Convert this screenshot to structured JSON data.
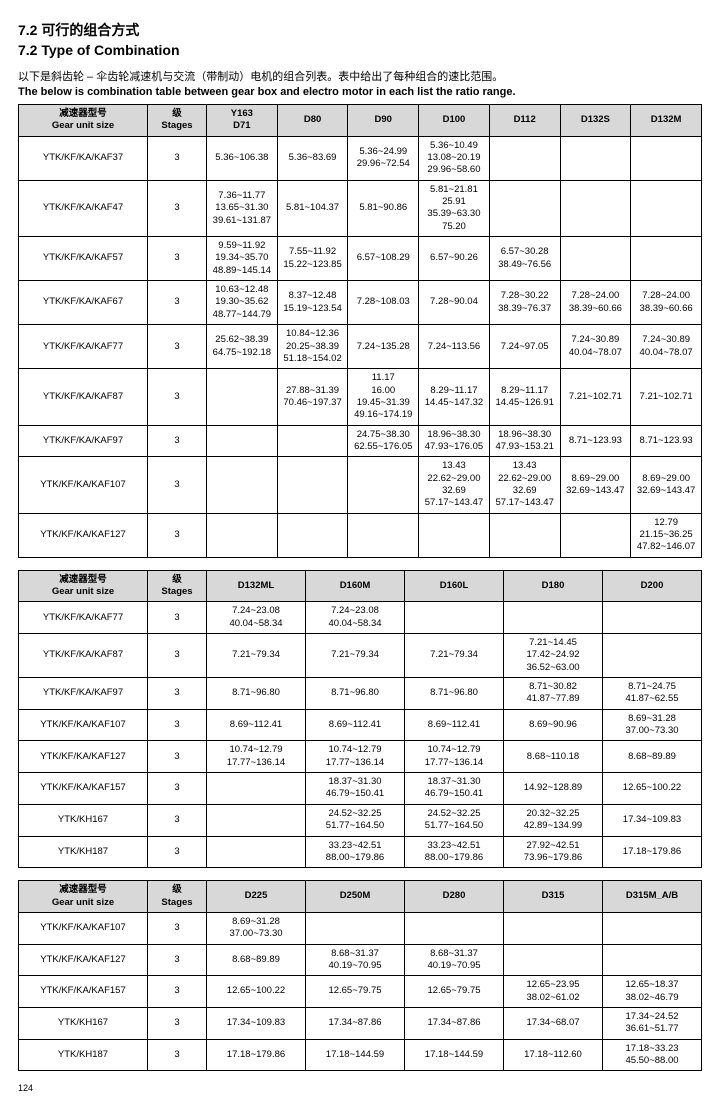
{
  "heading_cn": "7.2 可行的组合方式",
  "heading_en": "7.2 Type of Combination",
  "intro_cn": "以下是斜齿轮 – 伞齿轮减速机与交流（带制动）电机的组合列表。表中给出了每种组合的速比范围。",
  "intro_en": "The below is combination table between gear box and electro motor in each list the ratio range.",
  "h_gear": "减速器型号\nGear unit size",
  "h_stage": "级\nStages",
  "t1": {
    "cols": [
      "Y163\nD71",
      "D80",
      "D90",
      "D100",
      "D112",
      "D132S",
      "D132M"
    ],
    "rows": [
      {
        "g": "YTK/KF/KA/KAF37",
        "s": "3",
        "c": [
          "5.36~106.38",
          "5.36~83.69",
          "5.36~24.99\n29.96~72.54",
          "5.36~10.49\n13.08~20.19\n29.96~58.60",
          "",
          "",
          ""
        ]
      },
      {
        "g": "YTK/KF/KA/KAF47",
        "s": "3",
        "c": [
          "7.36~11.77\n13.65~31.30\n39.61~131.87",
          "5.81~104.37",
          "5.81~90.86",
          "5.81~21.81\n25.91\n35.39~63.30\n75.20",
          "",
          "",
          ""
        ]
      },
      {
        "g": "YTK/KF/KA/KAF57",
        "s": "3",
        "c": [
          "9.59~11.92\n19.34~35.70\n48.89~145.14",
          "7.55~11.92\n15.22~123.85",
          "6.57~108.29",
          "6.57~90.26",
          "6.57~30.28\n38.49~76.56",
          "",
          ""
        ]
      },
      {
        "g": "YTK/KF/KA/KAF67",
        "s": "3",
        "c": [
          "10.63~12.48\n19.30~35.62\n48.77~144.79",
          "8.37~12.48\n15.19~123.54",
          "7.28~108.03",
          "7.28~90.04",
          "7.28~30.22\n38.39~76.37",
          "7.28~24.00\n38.39~60.66",
          "7.28~24.00\n38.39~60.66"
        ]
      },
      {
        "g": "YTK/KF/KA/KAF77",
        "s": "3",
        "c": [
          "25.62~38.39\n64.75~192.18",
          "10.84~12.36\n20.25~38.39\n51.18~154.02",
          "7.24~135.28",
          "7.24~113.56",
          "7.24~97.05",
          "7.24~30.89\n40.04~78.07",
          "7.24~30.89\n40.04~78.07"
        ]
      },
      {
        "g": "YTK/KF/KA/KAF87",
        "s": "3",
        "c": [
          "",
          "27.88~31.39\n70.46~197.37",
          "11.17\n16.00\n19.45~31.39\n49.16~174.19",
          "8.29~11.17\n14.45~147.32",
          "8.29~11.17\n14.45~126.91",
          "7.21~102.71",
          "7.21~102.71"
        ]
      },
      {
        "g": "YTK/KF/KA/KAF97",
        "s": "3",
        "c": [
          "",
          "",
          "24.75~38.30\n62.55~176.05",
          "18.96~38.30\n47.93~176.05",
          "18.96~38.30\n47.93~153.21",
          "8.71~123.93",
          "8.71~123.93"
        ]
      },
      {
        "g": "YTK/KF/KA/KAF107",
        "s": "3",
        "c": [
          "",
          "",
          "",
          "13.43\n22.62~29.00\n32.69\n57.17~143.47",
          "13.43\n22.62~29.00\n32.69\n57.17~143.47",
          "8.69~29.00\n32.69~143.47",
          "8.69~29.00\n32.69~143.47"
        ]
      },
      {
        "g": "YTK/KF/KA/KAF127",
        "s": "3",
        "c": [
          "",
          "",
          "",
          "",
          "",
          "",
          "12.79\n21.15~36.25\n47.82~146.07"
        ]
      }
    ]
  },
  "t2": {
    "cols": [
      "D132ML",
      "D160M",
      "D160L",
      "D180",
      "D200"
    ],
    "rows": [
      {
        "g": "YTK/KF/KA/KAF77",
        "s": "3",
        "c": [
          "7.24~23.08\n40.04~58.34",
          "7.24~23.08\n40.04~58.34",
          "",
          "",
          ""
        ]
      },
      {
        "g": "YTK/KF/KA/KAF87",
        "s": "3",
        "c": [
          "7.21~79.34",
          "7.21~79.34",
          "7.21~79.34",
          "7.21~14.45\n17.42~24.92\n36.52~63.00",
          ""
        ]
      },
      {
        "g": "YTK/KF/KA/KAF97",
        "s": "3",
        "c": [
          "8.71~96.80",
          "8.71~96.80",
          "8.71~96.80",
          "8.71~30.82\n41.87~77.89",
          "8.71~24.75\n41.87~62.55"
        ]
      },
      {
        "g": "YTK/KF/KA/KAF107",
        "s": "3",
        "c": [
          "8.69~112.41",
          "8.69~112.41",
          "8.69~112.41",
          "8.69~90.96",
          "8.69~31.28\n37.00~73.30"
        ]
      },
      {
        "g": "YTK/KF/KA/KAF127",
        "s": "3",
        "c": [
          "10.74~12.79\n17.77~136.14",
          "10.74~12.79\n17.77~136.14",
          "10.74~12.79\n17.77~136.14",
          "8.68~110.18",
          "8.68~89.89"
        ]
      },
      {
        "g": "YTK/KF/KA/KAF157",
        "s": "3",
        "c": [
          "",
          "18.37~31.30\n46.79~150.41",
          "18.37~31.30\n46.79~150.41",
          "14.92~128.89",
          "12.65~100.22"
        ]
      },
      {
        "g": "YTK/KH167",
        "s": "3",
        "c": [
          "",
          "24.52~32.25\n51.77~164.50",
          "24.52~32.25\n51.77~164.50",
          "20.32~32.25\n42.89~134.99",
          "17.34~109.83"
        ]
      },
      {
        "g": "YTK/KH187",
        "s": "3",
        "c": [
          "",
          "33.23~42.51\n88.00~179.86",
          "33.23~42.51\n88.00~179.86",
          "27.92~42.51\n73.96~179.86",
          "17.18~179.86"
        ]
      }
    ]
  },
  "t3": {
    "cols": [
      "D225",
      "D250M",
      "D280",
      "D315",
      "D315M_A/B"
    ],
    "rows": [
      {
        "g": "YTK/KF/KA/KAF107",
        "s": "3",
        "c": [
          "8.69~31.28\n37.00~73.30",
          "",
          "",
          "",
          ""
        ]
      },
      {
        "g": "YTK/KF/KA/KAF127",
        "s": "3",
        "c": [
          "8.68~89.89",
          "8.68~31.37\n40.19~70.95",
          "8.68~31.37\n40.19~70.95",
          "",
          ""
        ]
      },
      {
        "g": "YTK/KF/KA/KAF157",
        "s": "3",
        "c": [
          "12.65~100.22",
          "12.65~79.75",
          "12.65~79.75",
          "12.65~23.95\n38.02~61.02",
          "12.65~18.37\n38.02~46.79"
        ]
      },
      {
        "g": "YTK/KH167",
        "s": "3",
        "c": [
          "17.34~109.83",
          "17.34~87.86",
          "17.34~87.86",
          "17.34~68.07",
          "17.34~24.52\n36.61~51.77"
        ]
      },
      {
        "g": "YTK/KH187",
        "s": "3",
        "c": [
          "17.18~179.86",
          "17.18~144.59",
          "17.18~144.59",
          "17.18~112.60",
          "17.18~33.23\n45.50~88.00"
        ]
      }
    ]
  },
  "page": "124"
}
